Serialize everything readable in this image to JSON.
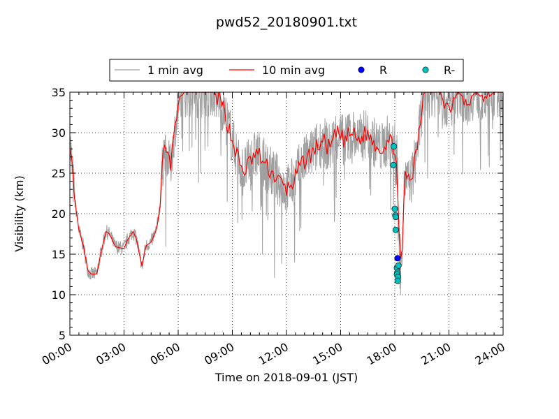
{
  "chart_data": {
    "type": "line",
    "title": "pwd52_20180901.txt",
    "xlabel": "Time on 2018-09-01 (JST)",
    "ylabel": "Visibility (km)",
    "xlim_hours": [
      0,
      24
    ],
    "ylim": [
      5,
      35
    ],
    "grid": true,
    "legend_position": "top-center",
    "x_ticks": [
      {
        "h": 0,
        "label": "00:00"
      },
      {
        "h": 3,
        "label": "03:00"
      },
      {
        "h": 6,
        "label": "06:00"
      },
      {
        "h": 9,
        "label": "09:00"
      },
      {
        "h": 12,
        "label": "12:00"
      },
      {
        "h": 15,
        "label": "15:00"
      },
      {
        "h": 18,
        "label": "18:00"
      },
      {
        "h": 21,
        "label": "21:00"
      },
      {
        "h": 24,
        "label": "24:00"
      }
    ],
    "y_ticks": [
      {
        "v": 5,
        "label": "5"
      },
      {
        "v": 10,
        "label": "10"
      },
      {
        "v": 15,
        "label": "15"
      },
      {
        "v": 20,
        "label": "20"
      },
      {
        "v": 25,
        "label": "25"
      },
      {
        "v": 30,
        "label": "30"
      },
      {
        "v": 35,
        "label": "35"
      }
    ],
    "legend": [
      {
        "label": "1 min avg",
        "kind": "line",
        "color": "#a0a0a0"
      },
      {
        "label": "10 min avg",
        "kind": "line",
        "color": "#ff0000"
      },
      {
        "label": "R",
        "kind": "marker",
        "color": "#0000ff"
      },
      {
        "label": "R-",
        "kind": "marker",
        "color": "#00bfbf"
      }
    ],
    "series": [
      {
        "name": "10 min avg",
        "color": "#ff0000",
        "x": [
          0,
          0.25,
          0.5,
          0.75,
          1.0,
          1.2,
          1.5,
          1.7,
          2.0,
          2.2,
          2.5,
          2.7,
          3.0,
          3.2,
          3.5,
          3.7,
          3.85,
          4.0,
          4.2,
          4.5,
          4.8,
          5.0,
          5.2,
          5.4,
          5.6,
          5.8,
          6.0,
          6.3,
          6.6,
          7.0,
          7.5,
          8.0,
          8.5,
          9.0,
          9.3,
          9.6,
          10.0,
          10.4,
          10.8,
          11.2,
          11.6,
          12.0,
          12.4,
          12.8,
          13.2,
          13.6,
          14.0,
          14.4,
          14.8,
          15.2,
          15.6,
          16.0,
          16.4,
          16.8,
          17.2,
          17.6,
          17.9,
          18.0,
          18.1,
          18.2,
          18.3,
          18.4,
          18.55,
          18.6,
          18.7,
          18.8,
          19.0,
          19.3,
          19.6,
          20.0,
          20.5,
          21.0,
          21.5,
          22.0,
          22.5,
          23.0,
          23.5,
          24.0
        ],
        "y": [
          29,
          22,
          18,
          16,
          13,
          12.5,
          12.6,
          15,
          17.8,
          17.5,
          16,
          15.8,
          15.7,
          16.8,
          17.8,
          16.8,
          15,
          13.5,
          16,
          16.5,
          18,
          21,
          28,
          27,
          26,
          30,
          33,
          35,
          35,
          35,
          35,
          35,
          33,
          29,
          27,
          25,
          26.5,
          27.5,
          26,
          25,
          24,
          23,
          24,
          26,
          27,
          28,
          29,
          28,
          30,
          29,
          30,
          29,
          30,
          29,
          28,
          29,
          28.5,
          28.3,
          26,
          20,
          14.5,
          14.5,
          25,
          24,
          24,
          23.5,
          25,
          29,
          35,
          35,
          35,
          33,
          35,
          34,
          35,
          34,
          35,
          35
        ]
      }
    ],
    "raw_1min": {
      "name": "1 min avg",
      "color": "#a0a0a0",
      "x": [
        0,
        0.25,
        0.5,
        0.75,
        1.0,
        1.2,
        1.5,
        1.7,
        2.0,
        2.2,
        2.5,
        2.7,
        3.0,
        3.2,
        3.5,
        3.7,
        3.85,
        4.0,
        4.2,
        4.5,
        4.8,
        5.0,
        5.2,
        5.4,
        5.6,
        5.8,
        6.0,
        6.3,
        6.6,
        7.0,
        7.5,
        8.0,
        8.5,
        9.0,
        9.3,
        9.6,
        10.0,
        10.4,
        10.8,
        11.2,
        11.6,
        12.0,
        12.4,
        12.8,
        13.2,
        13.6,
        14.0,
        14.4,
        14.8,
        15.2,
        15.6,
        16.0,
        16.4,
        16.8,
        17.2,
        17.6,
        17.9,
        18.0,
        18.1,
        18.2,
        18.3,
        18.4,
        18.55,
        18.6,
        18.7,
        18.8,
        19.0,
        19.3,
        19.6,
        20.0,
        20.5,
        21.0,
        21.5,
        22.0,
        22.5,
        23.0,
        23.5,
        24.0
      ],
      "y": [
        29,
        22,
        18,
        16,
        13,
        12.5,
        12.6,
        15,
        17.8,
        17.5,
        16,
        15.8,
        15.7,
        16.8,
        17.8,
        16.8,
        15,
        13.5,
        16,
        16.5,
        18,
        21,
        28,
        27,
        26,
        30,
        33,
        35,
        35,
        35,
        35,
        35,
        33,
        29,
        27,
        25,
        26.5,
        27.5,
        26,
        25,
        24,
        23,
        24,
        26,
        27,
        28,
        29,
        28,
        30,
        29,
        30,
        29,
        30,
        29,
        28,
        29,
        28.5,
        28.3,
        26,
        20,
        14.5,
        14.5,
        25,
        24,
        24,
        23.5,
        25,
        29,
        35,
        35,
        35,
        33,
        35,
        34,
        35,
        34,
        35,
        35
      ]
    },
    "marker_series": [
      {
        "name": "R",
        "color": "#0000ff",
        "points": [
          {
            "x": 18.15,
            "y": 14.5
          }
        ]
      },
      {
        "name": "R-",
        "color": "#00bfbf",
        "points": [
          {
            "x": 17.95,
            "y": 28.3
          },
          {
            "x": 17.92,
            "y": 26.0
          },
          {
            "x": 18.0,
            "y": 20.6
          },
          {
            "x": 18.03,
            "y": 19.8
          },
          {
            "x": 18.05,
            "y": 19.6
          },
          {
            "x": 18.05,
            "y": 18.0
          },
          {
            "x": 18.12,
            "y": 13.3
          },
          {
            "x": 18.2,
            "y": 13.6
          },
          {
            "x": 18.14,
            "y": 12.7
          },
          {
            "x": 18.12,
            "y": 12.5
          },
          {
            "x": 18.18,
            "y": 12.2
          },
          {
            "x": 18.16,
            "y": 11.7
          }
        ]
      }
    ]
  }
}
